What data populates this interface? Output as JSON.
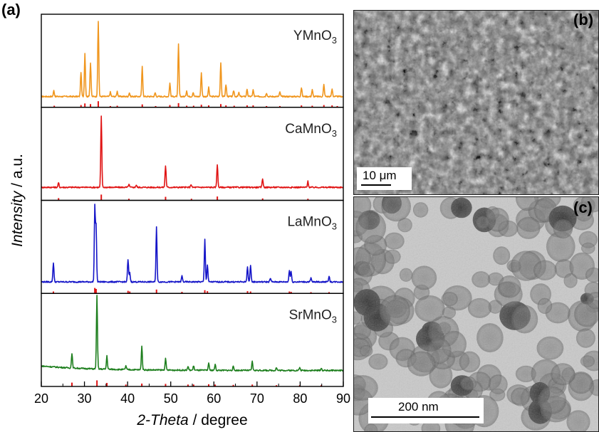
{
  "panel_labels": {
    "a": "(a)",
    "b": "(b)",
    "c": "(c)"
  },
  "images": {
    "sem": {
      "description": "SEM micrograph",
      "scale_label": "10 μm"
    },
    "tem": {
      "description": "TEM micrograph",
      "scale_label": "200 nm"
    }
  },
  "colors": {
    "YMnO3": "#F0961E",
    "CaMnO3": "#E01414",
    "LaMnO3": "#1515C8",
    "SrMnO3": "#1E7F1E",
    "reference": "#E01414"
  },
  "chart_data": {
    "type": "line",
    "xlabel": "2-Theta / degree",
    "ylabel": "Intensity / a.u.",
    "xlim": [
      20,
      90
    ],
    "xticks": [
      "20",
      "30",
      "40",
      "50",
      "60",
      "70",
      "80",
      "90"
    ],
    "series": [
      {
        "name": "YMnO3",
        "color": "#F0961E",
        "baseline": 0.03,
        "peaks": [
          [
            22.9,
            0.08
          ],
          [
            29.2,
            0.33
          ],
          [
            30.1,
            0.58
          ],
          [
            31.4,
            0.45
          ],
          [
            33.2,
            1.0
          ],
          [
            36.0,
            0.06
          ],
          [
            37.6,
            0.07
          ],
          [
            40.4,
            0.05
          ],
          [
            43.4,
            0.4
          ],
          [
            46.4,
            0.05
          ],
          [
            49.8,
            0.18
          ],
          [
            51.8,
            0.7
          ],
          [
            53.7,
            0.08
          ],
          [
            55.2,
            0.06
          ],
          [
            57.1,
            0.32
          ],
          [
            58.8,
            0.12
          ],
          [
            61.6,
            0.46
          ],
          [
            62.8,
            0.16
          ],
          [
            64.6,
            0.08
          ],
          [
            65.8,
            0.05
          ],
          [
            67.7,
            0.1
          ],
          [
            69.1,
            0.09
          ],
          [
            72.2,
            0.05
          ],
          [
            75.3,
            0.06
          ],
          [
            80.3,
            0.12
          ],
          [
            82.8,
            0.09
          ],
          [
            85.5,
            0.16
          ],
          [
            87.4,
            0.1
          ]
        ],
        "reference_lines": [
          [
            23.0,
            0.25
          ],
          [
            29.2,
            0.35
          ],
          [
            30.1,
            0.6
          ],
          [
            31.4,
            0.5
          ],
          [
            33.2,
            0.95
          ],
          [
            36.0,
            0.2
          ],
          [
            37.6,
            0.25
          ],
          [
            43.4,
            0.45
          ],
          [
            46.5,
            0.2
          ],
          [
            49.8,
            0.35
          ],
          [
            51.8,
            0.65
          ],
          [
            53.7,
            0.25
          ],
          [
            55.3,
            0.25
          ],
          [
            57.1,
            0.4
          ],
          [
            58.8,
            0.3
          ],
          [
            61.6,
            0.5
          ],
          [
            62.8,
            0.3
          ],
          [
            64.7,
            0.25
          ],
          [
            67.7,
            0.3
          ],
          [
            69.1,
            0.3
          ],
          [
            72.2,
            0.2
          ],
          [
            75.3,
            0.2
          ],
          [
            80.3,
            0.3
          ],
          [
            82.8,
            0.25
          ],
          [
            85.5,
            0.35
          ],
          [
            87.4,
            0.3
          ],
          [
            88.6,
            0.2
          ]
        ]
      },
      {
        "name": "CaMnO3",
        "color": "#E01414",
        "baseline": 0.06,
        "peaks": [
          [
            24.0,
            0.06
          ],
          [
            33.9,
            0.95
          ],
          [
            40.3,
            0.04
          ],
          [
            42.0,
            0.03
          ],
          [
            48.8,
            0.29
          ],
          [
            54.7,
            0.04
          ],
          [
            60.8,
            0.31
          ],
          [
            71.3,
            0.12
          ],
          [
            81.8,
            0.08
          ]
        ],
        "reference_lines": [
          [
            24.0,
            0.35
          ],
          [
            33.9,
            0.9
          ],
          [
            40.3,
            0.25
          ],
          [
            48.8,
            0.55
          ],
          [
            54.8,
            0.25
          ],
          [
            60.8,
            0.6
          ],
          [
            71.3,
            0.3
          ],
          [
            81.8,
            0.25
          ]
        ]
      },
      {
        "name": "LaMnO3",
        "color": "#1515C8",
        "baseline": 0.04,
        "peaks": [
          [
            22.8,
            0.26
          ],
          [
            32.4,
            1.0
          ],
          [
            32.7,
            0.75
          ],
          [
            40.1,
            0.3
          ],
          [
            40.5,
            0.12
          ],
          [
            46.7,
            0.74
          ],
          [
            52.6,
            0.08
          ],
          [
            57.9,
            0.57
          ],
          [
            58.5,
            0.23
          ],
          [
            67.8,
            0.21
          ],
          [
            68.5,
            0.23
          ],
          [
            73.1,
            0.05
          ],
          [
            77.5,
            0.16
          ],
          [
            77.9,
            0.14
          ],
          [
            82.5,
            0.05
          ],
          [
            86.7,
            0.08
          ]
        ],
        "reference_lines": [
          [
            22.8,
            0.3
          ],
          [
            32.4,
            0.85
          ],
          [
            32.7,
            0.7
          ],
          [
            40.1,
            0.4
          ],
          [
            40.5,
            0.3
          ],
          [
            46.7,
            0.6
          ],
          [
            52.6,
            0.25
          ],
          [
            57.9,
            0.5
          ],
          [
            58.5,
            0.35
          ],
          [
            67.8,
            0.35
          ],
          [
            68.5,
            0.3
          ],
          [
            77.5,
            0.3
          ],
          [
            77.9,
            0.25
          ],
          [
            82.5,
            0.2
          ],
          [
            86.7,
            0.2
          ]
        ]
      },
      {
        "name": "SrMnO3",
        "color": "#1E7F1E",
        "baseline": 0.1,
        "peaks": [
          [
            27.1,
            0.2
          ],
          [
            32.9,
            0.98
          ],
          [
            35.2,
            0.18
          ],
          [
            39.6,
            0.05
          ],
          [
            43.3,
            0.32
          ],
          [
            48.8,
            0.15
          ],
          [
            54.0,
            0.05
          ],
          [
            55.3,
            0.06
          ],
          [
            58.8,
            0.1
          ],
          [
            60.3,
            0.08
          ],
          [
            64.5,
            0.05
          ],
          [
            68.9,
            0.12
          ],
          [
            74.5,
            0.04
          ],
          [
            79.9,
            0.04
          ],
          [
            84.9,
            0.03
          ]
        ],
        "reference_lines": [
          [
            27.1,
            0.6
          ],
          [
            32.9,
            0.95
          ],
          [
            35.2,
            0.55
          ],
          [
            39.6,
            0.3
          ],
          [
            43.3,
            0.45
          ],
          [
            48.8,
            0.4
          ],
          [
            54.0,
            0.3
          ],
          [
            55.3,
            0.3
          ],
          [
            58.8,
            0.35
          ],
          [
            60.3,
            0.3
          ],
          [
            64.5,
            0.25
          ],
          [
            68.9,
            0.3
          ],
          [
            74.5,
            0.2
          ],
          [
            79.9,
            0.2
          ],
          [
            84.9,
            0.2
          ]
        ]
      }
    ],
    "grid": false,
    "legend": "label in top-right of each stacked panel"
  }
}
